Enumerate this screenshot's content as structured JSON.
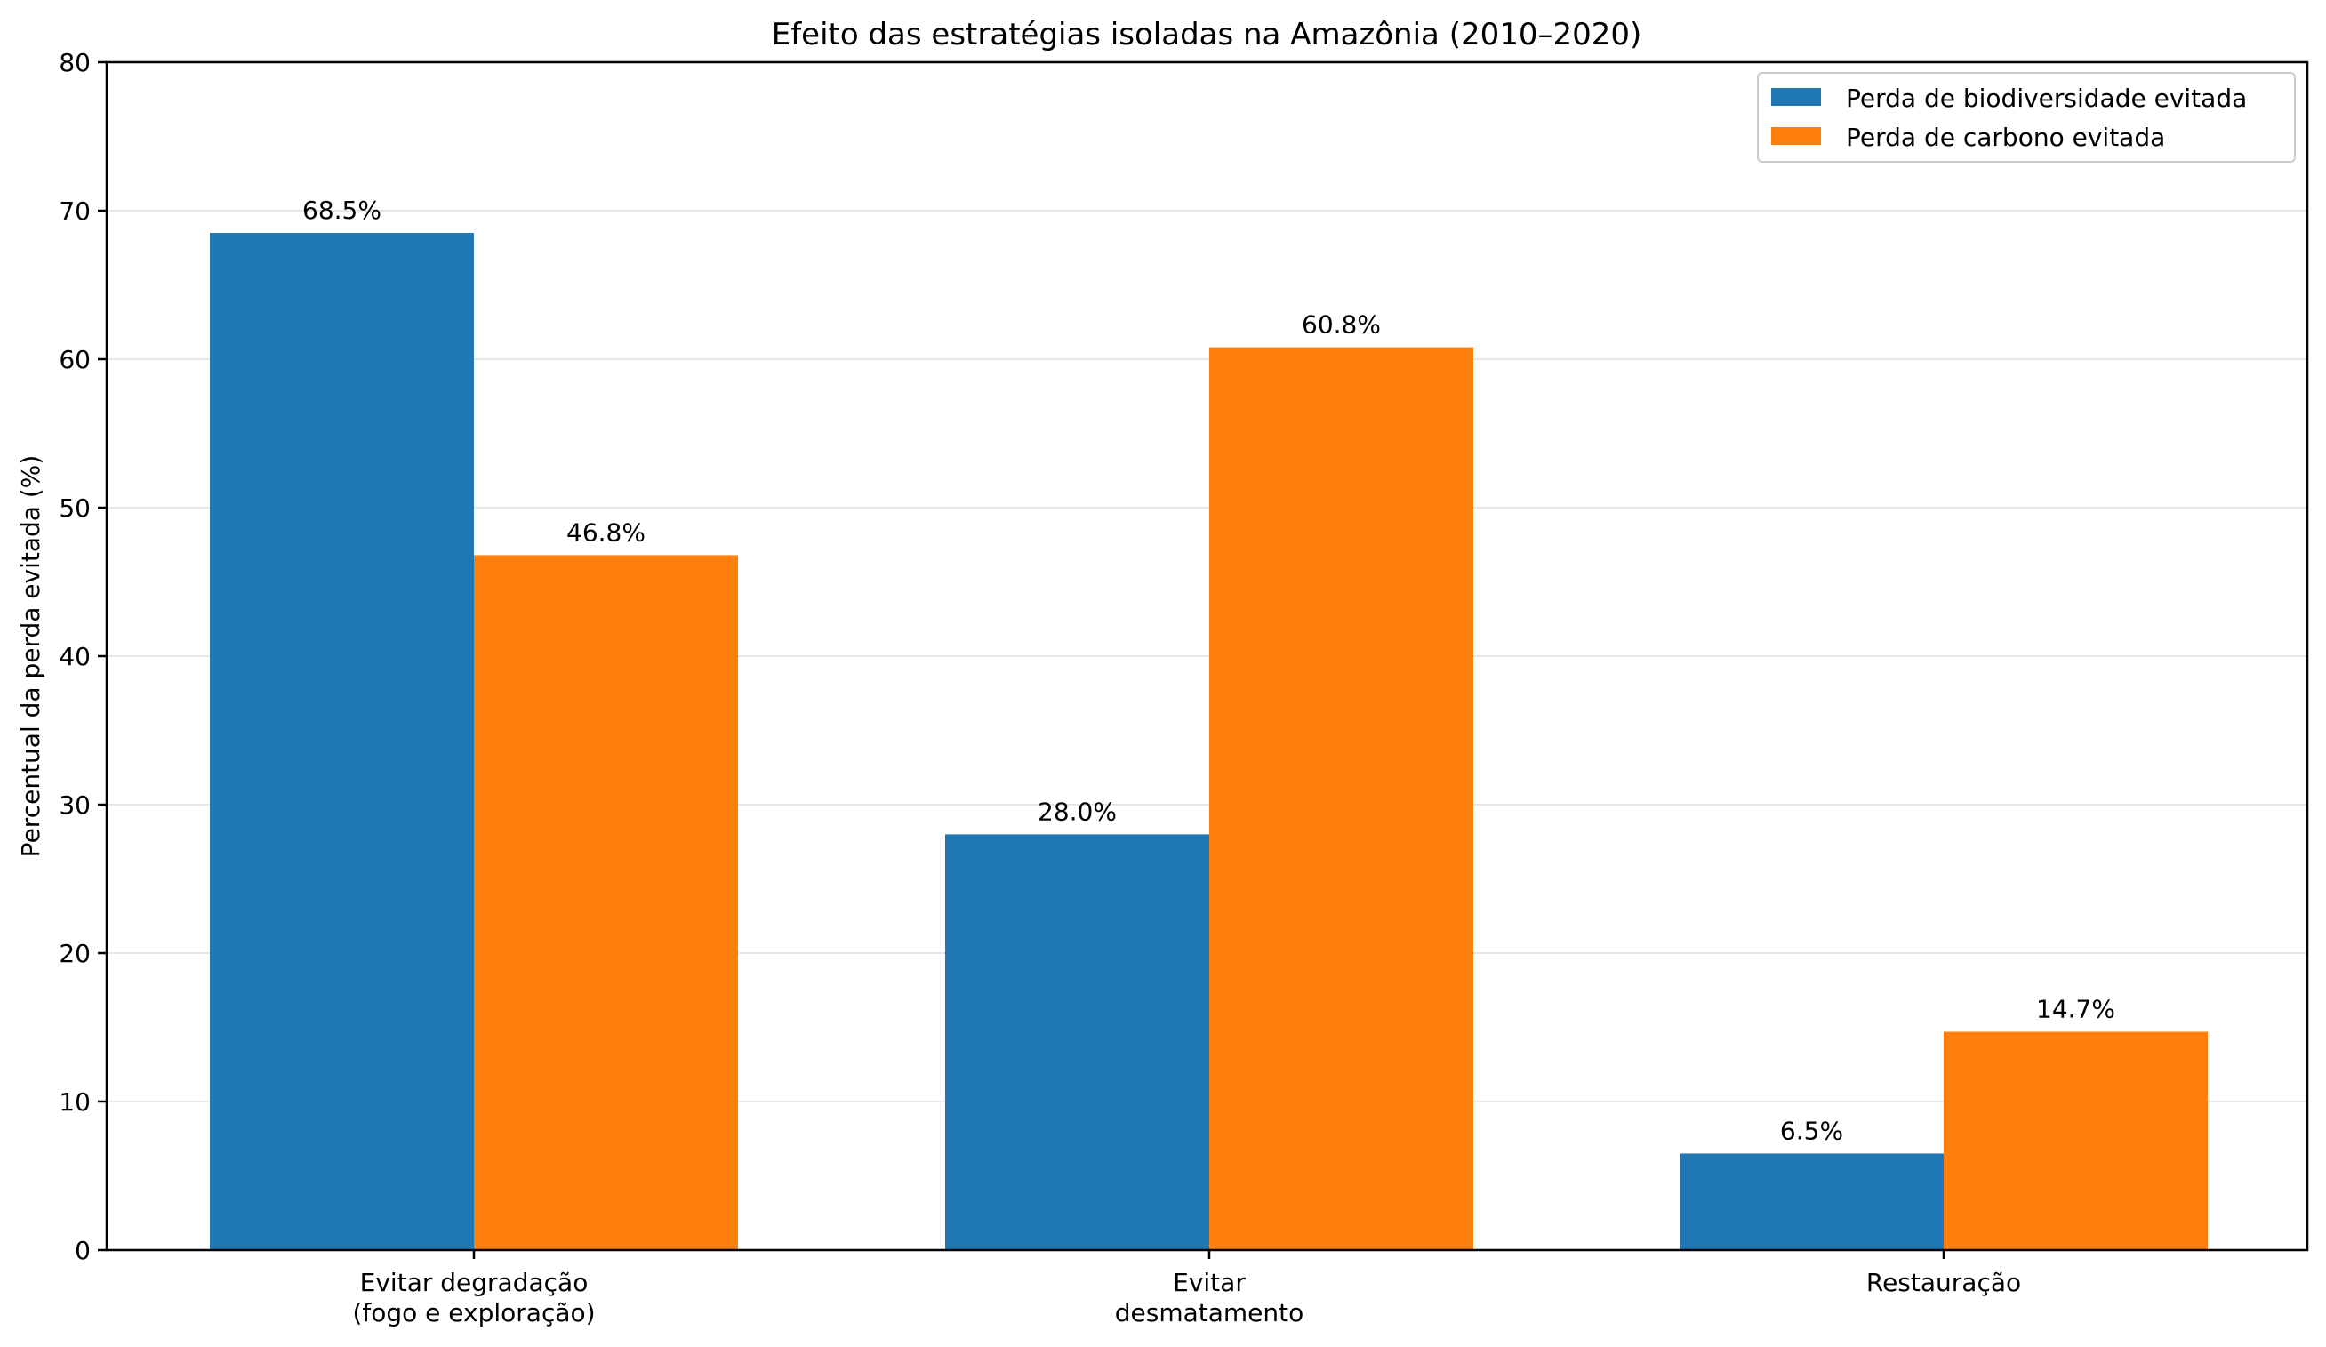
{
  "chart_data": {
    "type": "bar",
    "title": "Efeito das estratégias isoladas na Amazônia (2010–2020)",
    "xlabel": "",
    "ylabel": "Percentual da perda evitada (%)",
    "ylim": [
      0,
      80
    ],
    "yticks": [
      0,
      10,
      20,
      30,
      40,
      50,
      60,
      70,
      80
    ],
    "grid": "horizontal",
    "legend_position": "top-right",
    "categories": [
      [
        "Evitar degradação",
        "(fogo e exploração)"
      ],
      [
        "Evitar",
        "desmatamento"
      ],
      [
        "Restauração"
      ]
    ],
    "series": [
      {
        "name": "Perda de biodiversidade evitada",
        "color": "#1f77b4",
        "values": [
          68.5,
          28.0,
          6.5
        ],
        "labels": [
          "68.5%",
          "28.0%",
          "6.5%"
        ]
      },
      {
        "name": "Perda de carbono evitada",
        "color": "#ff7f0e",
        "values": [
          46.8,
          60.8,
          14.7
        ],
        "labels": [
          "46.8%",
          "60.8%",
          "14.7%"
        ]
      }
    ]
  }
}
